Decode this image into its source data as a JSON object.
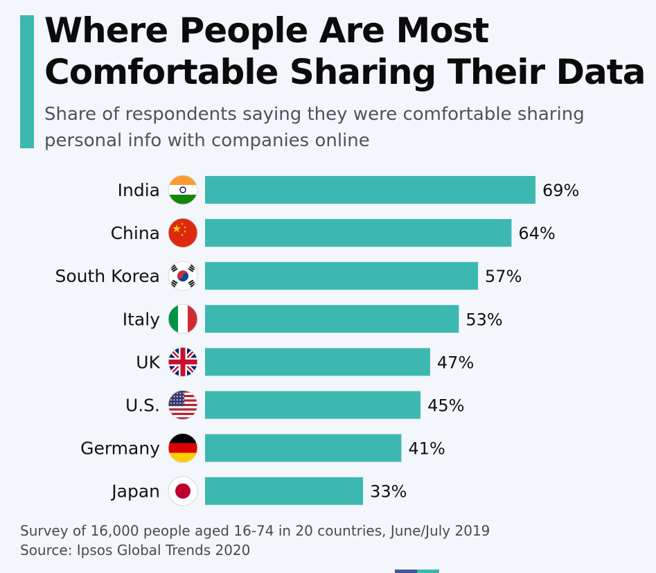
{
  "chart_data": {
    "type": "bar",
    "orientation": "horizontal",
    "title": "Where People Are Most Comfortable Sharing Their Data",
    "subtitle": "Share of respondents saying they were comfortable sharing personal info with companies online",
    "categories": [
      "India",
      "China",
      "South Korea",
      "Italy",
      "UK",
      "U.S.",
      "Germany",
      "Japan"
    ],
    "values": [
      69,
      64,
      57,
      53,
      47,
      45,
      41,
      33
    ],
    "value_labels": [
      "69%",
      "64%",
      "57%",
      "53%",
      "47%",
      "45%",
      "41%",
      "33%"
    ],
    "icons": [
      "flag-india-icon",
      "flag-china-icon",
      "flag-south-korea-icon",
      "flag-italy-icon",
      "flag-uk-icon",
      "flag-us-icon",
      "flag-germany-icon",
      "flag-japan-icon"
    ],
    "bar_color": "#3db8b1",
    "xlim": [
      0,
      69
    ],
    "grid": false,
    "legend": "none"
  },
  "footer": {
    "note": "Survey of 16,000 people aged 16-74 in 20 countries, June/July 2019",
    "source": "Source: Ipsos Global Trends 2020"
  },
  "colors": {
    "accent": "#3db8b1",
    "background": "#f3f6fa",
    "title": "#0b0b0b",
    "subtitle": "#505256"
  }
}
